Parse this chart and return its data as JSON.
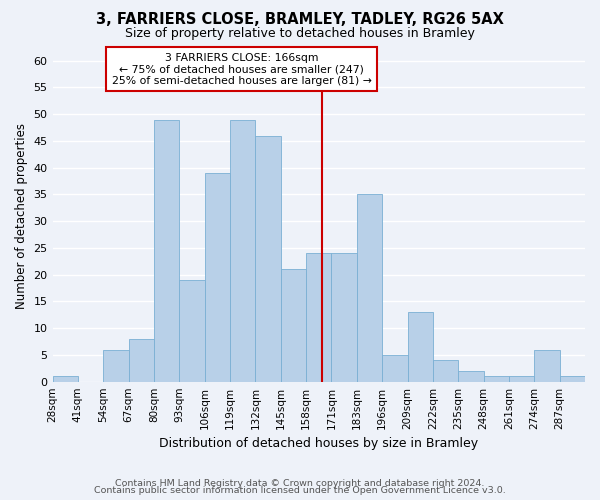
{
  "title": "3, FARRIERS CLOSE, BRAMLEY, TADLEY, RG26 5AX",
  "subtitle": "Size of property relative to detached houses in Bramley",
  "xlabel": "Distribution of detached houses by size in Bramley",
  "ylabel": "Number of detached properties",
  "bins": [
    "28sqm",
    "41sqm",
    "54sqm",
    "67sqm",
    "80sqm",
    "93sqm",
    "106sqm",
    "119sqm",
    "132sqm",
    "145sqm",
    "158sqm",
    "171sqm",
    "183sqm",
    "196sqm",
    "209sqm",
    "222sqm",
    "235sqm",
    "248sqm",
    "261sqm",
    "274sqm",
    "287sqm"
  ],
  "counts": [
    1,
    0,
    6,
    8,
    49,
    19,
    39,
    49,
    46,
    21,
    24,
    24,
    35,
    5,
    13,
    4,
    2,
    1,
    1,
    6,
    1
  ],
  "bar_color": "#b8d0e8",
  "bar_edge_color": "#7aafd4",
  "property_line_x": 166,
  "property_line_color": "#cc0000",
  "annotation_line1": "3 FARRIERS CLOSE: 166sqm",
  "annotation_line2": "← 75% of detached houses are smaller (247)",
  "annotation_line3": "25% of semi-detached houses are larger (81) →",
  "annotation_box_color": "white",
  "annotation_box_edge_color": "#cc0000",
  "ylim": [
    0,
    62
  ],
  "yticks": [
    0,
    5,
    10,
    15,
    20,
    25,
    30,
    35,
    40,
    45,
    50,
    55,
    60
  ],
  "footer1": "Contains HM Land Registry data © Crown copyright and database right 2024.",
  "footer2": "Contains public sector information licensed under the Open Government Licence v3.0.",
  "background_color": "#eef2f9",
  "grid_color": "#ffffff",
  "title_fontsize": 10.5,
  "subtitle_fontsize": 9,
  "ylabel_fontsize": 8.5,
  "xlabel_fontsize": 9,
  "tick_fontsize": 7.5,
  "footer_fontsize": 6.8
}
